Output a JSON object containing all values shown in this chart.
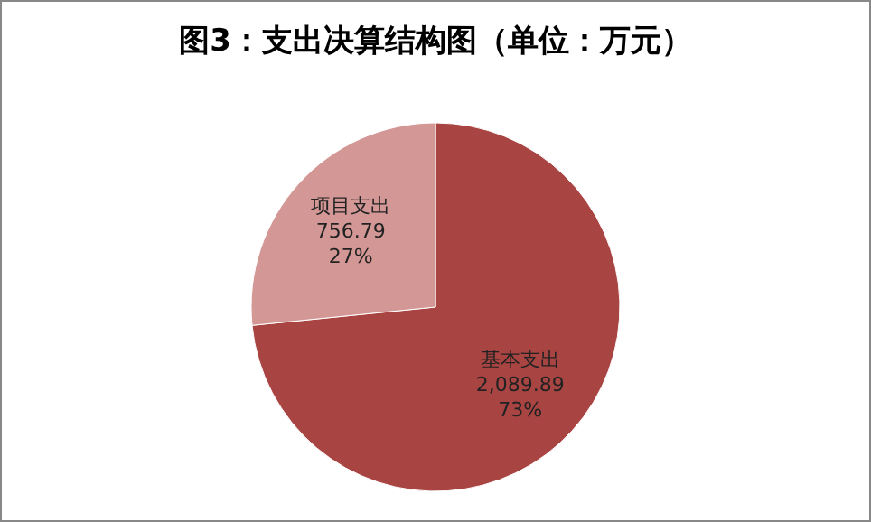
{
  "chart_data": {
    "type": "pie",
    "title": "图3：支出决算结构图（单位：万元）",
    "categories": [
      "基本支出",
      "项目支出"
    ],
    "values": [
      2089.89,
      756.79
    ],
    "colors": [
      "#a84442",
      "#d39896"
    ],
    "value_labels": [
      "2,089.89\n73%",
      "756.79\n27%"
    ]
  }
}
